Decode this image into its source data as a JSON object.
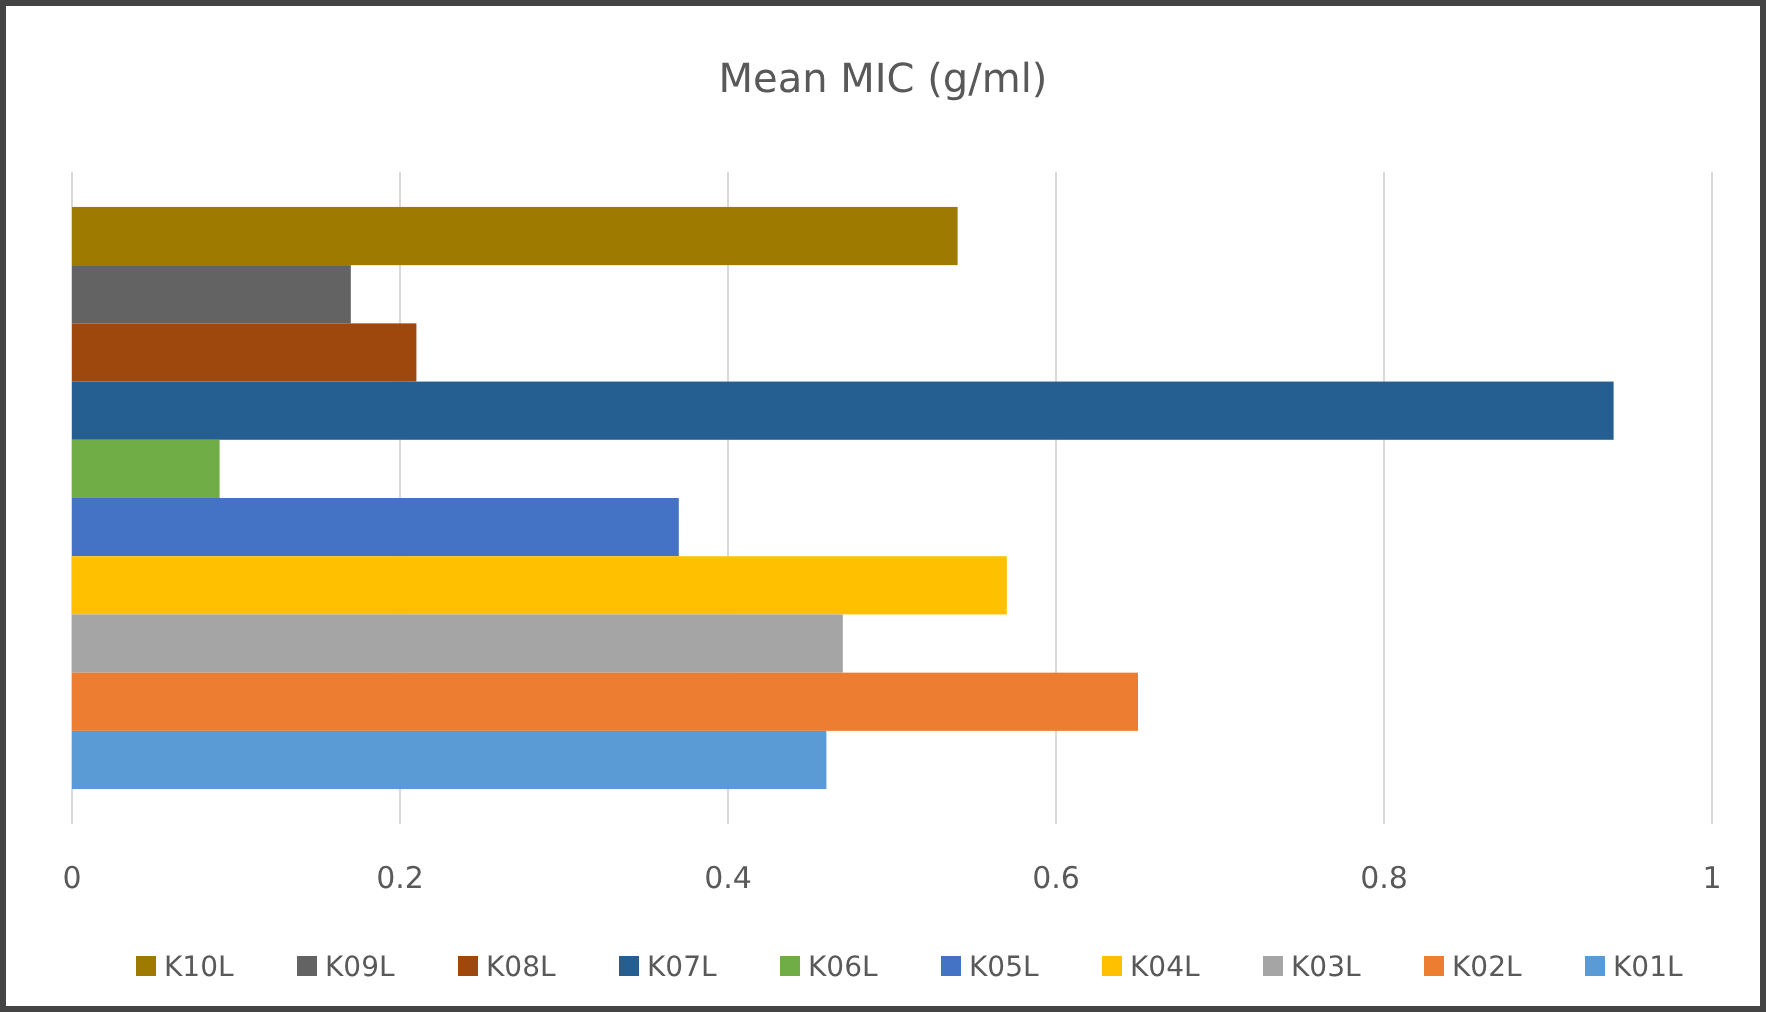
{
  "chart_data": {
    "type": "bar",
    "orientation": "horizontal",
    "title": "Mean MIC (g/ml)",
    "categories": [
      null
    ],
    "series": [
      {
        "name": "K10L",
        "color": "#9e7a00",
        "values": [
          0.54
        ]
      },
      {
        "name": "K09L",
        "color": "#636363",
        "values": [
          0.17
        ]
      },
      {
        "name": "K08L",
        "color": "#9e480e",
        "values": [
          0.21
        ]
      },
      {
        "name": "K07L",
        "color": "#255e91",
        "values": [
          0.94
        ]
      },
      {
        "name": "K06L",
        "color": "#70ad47",
        "values": [
          0.09
        ]
      },
      {
        "name": "K05L",
        "color": "#4472c4",
        "values": [
          0.37
        ]
      },
      {
        "name": "K04L",
        "color": "#ffc000",
        "values": [
          0.57
        ]
      },
      {
        "name": "K03L",
        "color": "#a5a5a5",
        "values": [
          0.47
        ]
      },
      {
        "name": "K02L",
        "color": "#ed7d31",
        "values": [
          0.65
        ]
      },
      {
        "name": "K01L",
        "color": "#5b9bd5",
        "values": [
          0.46
        ]
      }
    ],
    "xlim": [
      0,
      1
    ],
    "xticks": [
      0,
      0.2,
      0.4,
      0.6,
      0.8,
      1
    ],
    "grid": "x",
    "legend": "bottom"
  }
}
